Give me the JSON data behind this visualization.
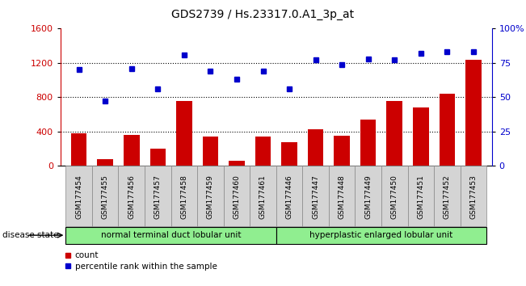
{
  "title": "GDS2739 / Hs.23317.0.A1_3p_at",
  "categories": [
    "GSM177454",
    "GSM177455",
    "GSM177456",
    "GSM177457",
    "GSM177458",
    "GSM177459",
    "GSM177460",
    "GSM177461",
    "GSM177446",
    "GSM177447",
    "GSM177448",
    "GSM177449",
    "GSM177450",
    "GSM177451",
    "GSM177452",
    "GSM177453"
  ],
  "counts": [
    380,
    75,
    360,
    200,
    760,
    340,
    55,
    345,
    280,
    430,
    350,
    540,
    760,
    680,
    840,
    1240
  ],
  "percentiles": [
    70,
    47,
    71,
    56,
    81,
    69,
    63,
    69,
    56,
    77,
    74,
    78,
    77,
    82,
    83,
    83
  ],
  "group1_label": "normal terminal duct lobular unit",
  "group2_label": "hyperplastic enlarged lobular unit",
  "group1_count": 8,
  "group2_count": 8,
  "bar_color": "#cc0000",
  "dot_color": "#0000cc",
  "ylim_left": [
    0,
    1600
  ],
  "ylim_right": [
    0,
    100
  ],
  "yticks_left": [
    0,
    400,
    800,
    1200,
    1600
  ],
  "yticks_right": [
    0,
    25,
    50,
    75,
    100
  ],
  "yticklabels_right": [
    "0",
    "25",
    "50",
    "75",
    "100%"
  ],
  "group_bg": "#90EE90",
  "xtick_bg": "#d4d4d4",
  "disease_state_label": "disease state",
  "legend_count_label": "count",
  "legend_pct_label": "percentile rank within the sample"
}
